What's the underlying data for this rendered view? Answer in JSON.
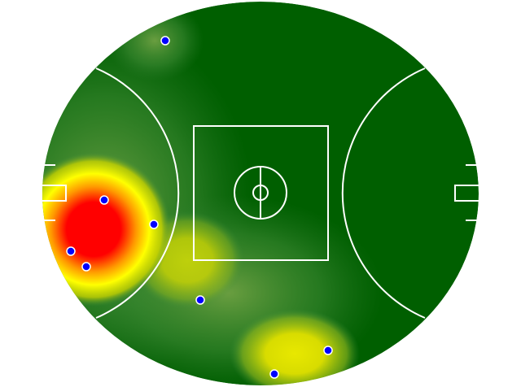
{
  "colors": {
    "field": "#005f00",
    "low": "#3c8c3c",
    "mid": "#e6e600",
    "high": "#ff0000",
    "markings": "#ffffff",
    "points": "#0000ff"
  }
}
